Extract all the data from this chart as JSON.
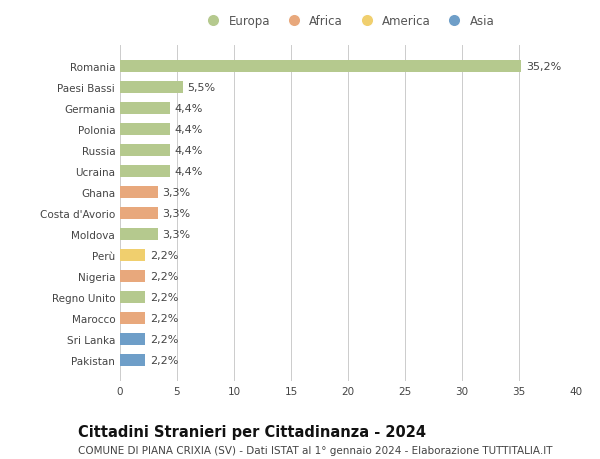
{
  "categories": [
    "Pakistan",
    "Sri Lanka",
    "Marocco",
    "Regno Unito",
    "Nigeria",
    "Perù",
    "Moldova",
    "Costa d'Avorio",
    "Ghana",
    "Ucraina",
    "Russia",
    "Polonia",
    "Germania",
    "Paesi Bassi",
    "Romania"
  ],
  "values": [
    2.2,
    2.2,
    2.2,
    2.2,
    2.2,
    2.2,
    3.3,
    3.3,
    3.3,
    4.4,
    4.4,
    4.4,
    4.4,
    5.5,
    35.2
  ],
  "labels": [
    "2,2%",
    "2,2%",
    "2,2%",
    "2,2%",
    "2,2%",
    "2,2%",
    "3,3%",
    "3,3%",
    "3,3%",
    "4,4%",
    "4,4%",
    "4,4%",
    "4,4%",
    "5,5%",
    "35,2%"
  ],
  "continents": [
    "Asia",
    "Asia",
    "Africa",
    "Europa",
    "Africa",
    "America",
    "Europa",
    "Africa",
    "Africa",
    "Europa",
    "Europa",
    "Europa",
    "Europa",
    "Europa",
    "Europa"
  ],
  "continent_colors": {
    "Europa": "#b5c98e",
    "Africa": "#e8a87c",
    "America": "#f0cf6e",
    "Asia": "#6e9ec8"
  },
  "legend_order": [
    "Europa",
    "Africa",
    "America",
    "Asia"
  ],
  "title": "Cittadini Stranieri per Cittadinanza - 2024",
  "subtitle": "COMUNE DI PIANA CRIXIA (SV) - Dati ISTAT al 1° gennaio 2024 - Elaborazione TUTTITALIA.IT",
  "xlim": [
    0,
    40
  ],
  "xticks": [
    0,
    5,
    10,
    15,
    20,
    25,
    30,
    35,
    40
  ],
  "background_color": "#ffffff",
  "grid_color": "#cccccc",
  "bar_height": 0.55,
  "title_fontsize": 10.5,
  "subtitle_fontsize": 7.5,
  "label_fontsize": 8,
  "tick_fontsize": 7.5,
  "legend_fontsize": 8.5
}
